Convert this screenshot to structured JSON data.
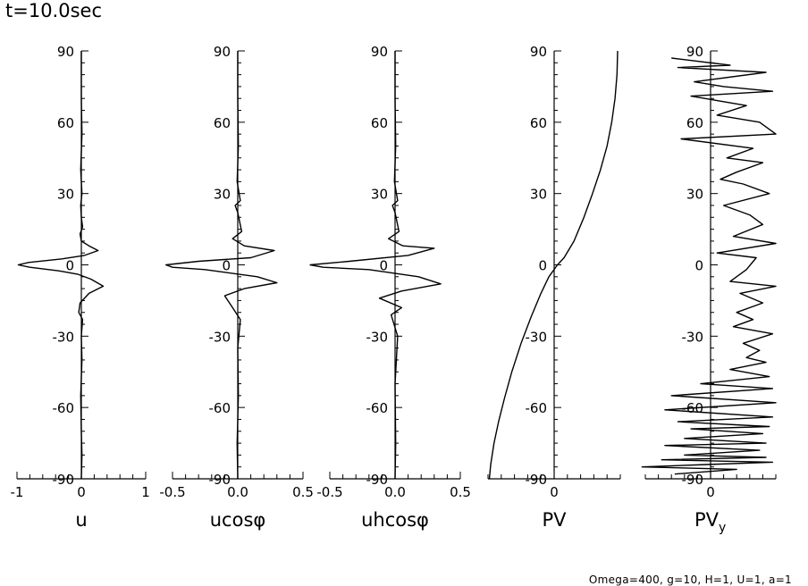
{
  "title": "t=10.0sec",
  "footer": "Omega=400, g=10, H=1, U=1, a=1",
  "chart_data": [
    {
      "type": "line",
      "xlabel": "u",
      "xlim": [
        -1,
        1
      ],
      "xticks": [
        "-1",
        "0",
        "1"
      ],
      "ylim": [
        -90,
        90
      ],
      "yticks": [
        "90",
        "60",
        "30",
        "0",
        "-30",
        "-60",
        "-90"
      ],
      "series": [
        {
          "name": "u",
          "x": [
            0,
            0,
            0.01,
            -0.01,
            0.01,
            -0.01,
            0,
            0.02,
            -0.02,
            0,
            0.12,
            0.26,
            0.05,
            -0.3,
            -0.82,
            -0.98,
            -0.8,
            -0.35,
            -0.05,
            0.15,
            0.34,
            0.12,
            -0.02,
            -0.04,
            0.02,
            0,
            0.01,
            -0.01,
            0,
            0.01,
            0
          ],
          "y": [
            90,
            70,
            55,
            40,
            30,
            25,
            20,
            16,
            13,
            10,
            8,
            6,
            4,
            2.5,
            1,
            0,
            -1,
            -2.5,
            -4,
            -6,
            -9,
            -12,
            -16,
            -20,
            -23,
            -30,
            -40,
            -55,
            -70,
            -80,
            -90
          ]
        }
      ]
    },
    {
      "type": "line",
      "xlabel": "ucosφ",
      "xlim": [
        -0.5,
        0.5
      ],
      "xticks": [
        "-0.5",
        "0.0",
        "0.5"
      ],
      "ylim": [
        -90,
        90
      ],
      "yticks": [
        "90",
        "60",
        "30",
        "0",
        "-30",
        "-60",
        "-90"
      ],
      "series": [
        {
          "name": "ucosφ",
          "x": [
            0,
            0,
            0.005,
            -0.005,
            0.02,
            -0.02,
            0,
            0.03,
            -0.04,
            0.05,
            0.28,
            0.1,
            -0.3,
            -0.55,
            -0.5,
            -0.25,
            0.15,
            0.3,
            0.05,
            -0.1,
            -0.04,
            0.02,
            0,
            0.005,
            -0.005,
            0
          ],
          "y": [
            90,
            70,
            50,
            35,
            27,
            25,
            22,
            14,
            11,
            8,
            6,
            3,
            1.5,
            0,
            -1,
            -2,
            -5,
            -7.5,
            -10,
            -13,
            -18,
            -23,
            -35,
            -55,
            -75,
            -90
          ]
        }
      ]
    },
    {
      "type": "line",
      "xlabel": "uhcosφ",
      "xlim": [
        -0.5,
        0.5
      ],
      "xticks": [
        "-0.5",
        "0.0",
        "0.5"
      ],
      "ylim": [
        -90,
        90
      ],
      "yticks": [
        "90",
        "60",
        "30",
        "0",
        "-30",
        "-60",
        "-90"
      ],
      "series": [
        {
          "name": "uhcosφ",
          "x": [
            0,
            0,
            0.005,
            -0.005,
            0.02,
            -0.02,
            0,
            0.03,
            -0.05,
            0.06,
            0.3,
            0.1,
            -0.35,
            -0.65,
            -0.55,
            -0.2,
            0.18,
            0.35,
            0.05,
            -0.12,
            0.05,
            -0.03,
            0.02,
            0,
            0.005,
            0
          ],
          "y": [
            90,
            70,
            50,
            35,
            27,
            25,
            22,
            14,
            11,
            8,
            7,
            4,
            1.5,
            0,
            -1,
            -2,
            -5,
            -8,
            -11,
            -14,
            -18,
            -21,
            -30,
            -50,
            -75,
            -90
          ]
        }
      ]
    },
    {
      "type": "line",
      "xlabel": "PV",
      "xlim": [
        -1,
        1
      ],
      "xticks": [
        "0"
      ],
      "ylim": [
        -90,
        90
      ],
      "yticks": [
        "90",
        "60",
        "30",
        "0",
        "-30",
        "-60",
        "-90"
      ],
      "series": [
        {
          "name": "PV",
          "x": [
            0.96,
            0.95,
            0.92,
            0.87,
            0.8,
            0.7,
            0.58,
            0.45,
            0.3,
            0.15,
            0.05,
            -0.08,
            -0.2,
            -0.35,
            -0.5,
            -0.64,
            -0.75,
            -0.84,
            -0.91,
            -0.96,
            -0.98
          ],
          "y": [
            90,
            80,
            70,
            60,
            50,
            40,
            30,
            20,
            10,
            3,
            0,
            -5,
            -12,
            -22,
            -33,
            -45,
            -56,
            -66,
            -75,
            -84,
            -90
          ]
        }
      ]
    },
    {
      "type": "line",
      "xlabel": "PVy",
      "xlim": [
        -2,
        2
      ],
      "xticks": [
        "0"
      ],
      "ylim": [
        -90,
        90
      ],
      "yticks": [
        "90",
        "60",
        "30",
        "0",
        "-30",
        "-60",
        "-90"
      ],
      "series": [
        {
          "name": "PV_y",
          "x": [
            -1.2,
            0.6,
            -1.0,
            1.7,
            -0.5,
            0.4,
            1.9,
            -0.6,
            1.1,
            0.2,
            1.5,
            2.0,
            -0.9,
            1.3,
            0.5,
            1.6,
            0.8,
            0.3,
            1.0,
            1.8,
            0.4,
            1.2,
            1.6,
            0.7,
            2.0,
            0.2,
            1.4,
            1.1,
            0.6,
            2.0,
            0.9,
            1.6,
            0.8,
            1.3,
            0.7,
            1.9,
            1.0,
            1.5,
            1.1,
            1.7,
            0.6,
            1.8,
            -0.3,
            1.9,
            -1.2,
            2.0,
            -1.4,
            1.9,
            -1.0,
            1.8,
            -0.6,
            1.6,
            -0.8,
            1.7,
            -1.4,
            1.5,
            -0.8,
            1.7,
            -1.5,
            1.9,
            -0.1,
            -2.1,
            0.8,
            -1.1
          ],
          "y": [
            87,
            84,
            83,
            81,
            77,
            75,
            73,
            71,
            67,
            63,
            60,
            55,
            53,
            49,
            45,
            43,
            39,
            36,
            34,
            30,
            25,
            21,
            17,
            12,
            9,
            5,
            3,
            -2,
            -7,
            -9,
            -12,
            -16,
            -20,
            -23,
            -26,
            -29,
            -33,
            -36,
            -39,
            -41,
            -44,
            -47,
            -50,
            -52,
            -55,
            -58,
            -61,
            -64,
            -66,
            -68,
            -69,
            -71,
            -73,
            -75,
            -76,
            -78,
            -80,
            -81,
            -82,
            -83,
            -84,
            -85,
            -86,
            -88
          ]
        }
      ]
    }
  ]
}
